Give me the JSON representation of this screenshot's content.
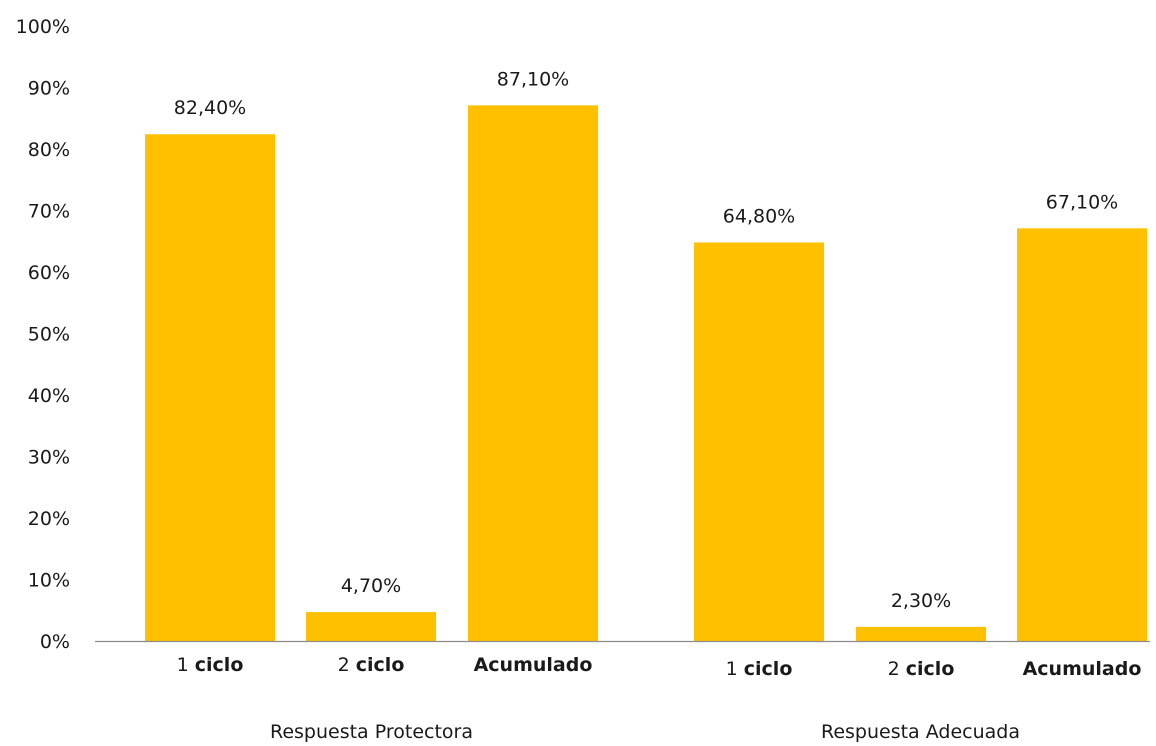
{
  "chart_data": {
    "type": "bar",
    "title": "",
    "xlabel": "",
    "ylabel": "",
    "ylim": [
      0,
      100
    ],
    "y_ticks": [
      "0%",
      "10%",
      "20%",
      "30%",
      "40%",
      "50%",
      "60%",
      "70%",
      "80%",
      "90%",
      "100%"
    ],
    "grid": false,
    "legend": "none",
    "bar_color": "#FFC000",
    "groups": [
      {
        "label": "Respuesta Protectora",
        "bars": [
          {
            "category_num": "1",
            "category_text": "ciclo",
            "value": 82.4,
            "value_label": "82,40%"
          },
          {
            "category_num": "2",
            "category_text": "ciclo",
            "value": 4.7,
            "value_label": "4,70%"
          },
          {
            "category_num": "",
            "category_text": "Acumulado",
            "value": 87.1,
            "value_label": "87,10%"
          }
        ]
      },
      {
        "label": "Respuesta Adecuada",
        "bars": [
          {
            "category_num": "1",
            "category_text": "ciclo",
            "value": 64.8,
            "value_label": "64,80%"
          },
          {
            "category_num": "2",
            "category_text": "ciclo",
            "value": 2.3,
            "value_label": "2,30%"
          },
          {
            "category_num": "",
            "category_text": "Acumulado",
            "value": 67.1,
            "value_label": "67,10%"
          }
        ]
      }
    ]
  }
}
